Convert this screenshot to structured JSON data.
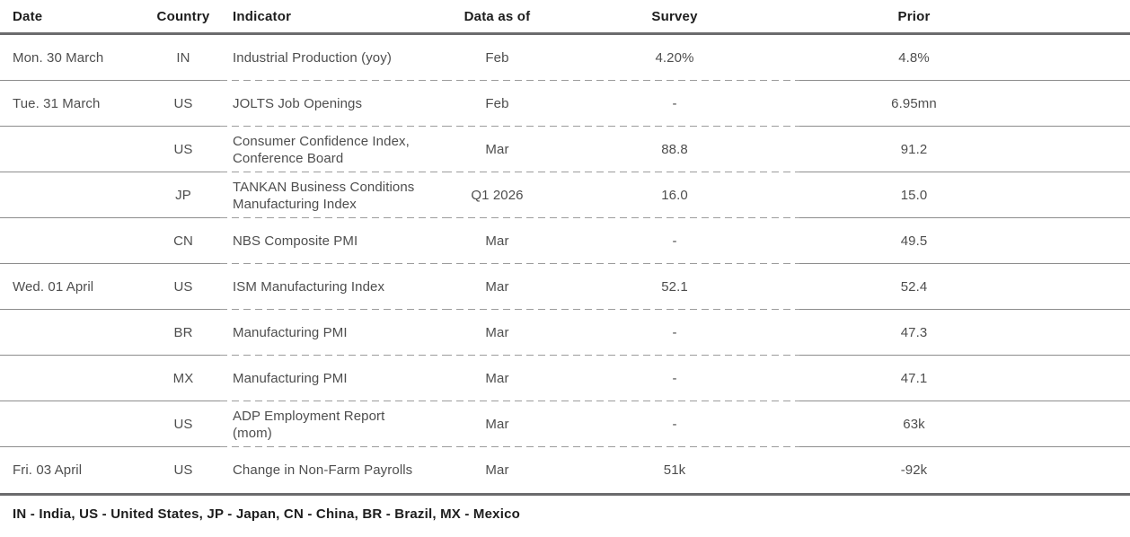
{
  "colors": {
    "thick_rule": "#6b6b6d",
    "thin_rule": "#8d8d8d",
    "dashed_rule": "#9c9c9c",
    "header_text": "#1d1d1d",
    "body_text": "#4e4e4e",
    "footer_text": "#1d1d1d"
  },
  "table": {
    "columns": [
      {
        "label": "Date"
      },
      {
        "label": "Country"
      },
      {
        "label": "Indicator"
      },
      {
        "label": "Data as of"
      },
      {
        "label": "Survey"
      },
      {
        "label": "Prior"
      }
    ],
    "rows": [
      {
        "date": "Mon. 30 March",
        "country": "IN",
        "indicator": "Industrial Production (yoy)",
        "data_as_of": "Feb",
        "survey": "4.20%",
        "prior": "4.8%"
      },
      {
        "date": "Tue. 31 March",
        "country": "US",
        "indicator": "JOLTS Job Openings",
        "data_as_of": "Feb",
        "survey": "-",
        "prior": "6.95mn"
      },
      {
        "date": "",
        "country": "US",
        "indicator": "Consumer Confidence Index,\nConference Board",
        "data_as_of": "Mar",
        "survey": "88.8",
        "prior": "91.2"
      },
      {
        "date": "",
        "country": "JP",
        "indicator": "TANKAN Business Conditions\nManufacturing Index",
        "data_as_of": "Q1 2026",
        "survey": "16.0",
        "prior": "15.0"
      },
      {
        "date": "",
        "country": "CN",
        "indicator": "NBS Composite PMI",
        "data_as_of": "Mar",
        "survey": "-",
        "prior": "49.5"
      },
      {
        "date": "Wed. 01 April",
        "country": "US",
        "indicator": "ISM Manufacturing Index",
        "data_as_of": "Mar",
        "survey": "52.1",
        "prior": "52.4"
      },
      {
        "date": "",
        "country": "BR",
        "indicator": "Manufacturing PMI",
        "data_as_of": "Mar",
        "survey": "-",
        "prior": "47.3"
      },
      {
        "date": "",
        "country": "MX",
        "indicator": "Manufacturing PMI",
        "data_as_of": "Mar",
        "survey": "-",
        "prior": "47.1"
      },
      {
        "date": "",
        "country": "US",
        "indicator": "ADP Employment Report\n(mom)",
        "data_as_of": "Mar",
        "survey": "-",
        "prior": "63k"
      },
      {
        "date": "Fri. 03 April",
        "country": "US",
        "indicator": "Change in Non-Farm Payrolls",
        "data_as_of": "Mar",
        "survey": "51k",
        "prior": "-92k"
      }
    ]
  },
  "footer": {
    "legend": "IN - India, US - United States, JP - Japan, CN - China, BR - Brazil, MX - Mexico"
  }
}
